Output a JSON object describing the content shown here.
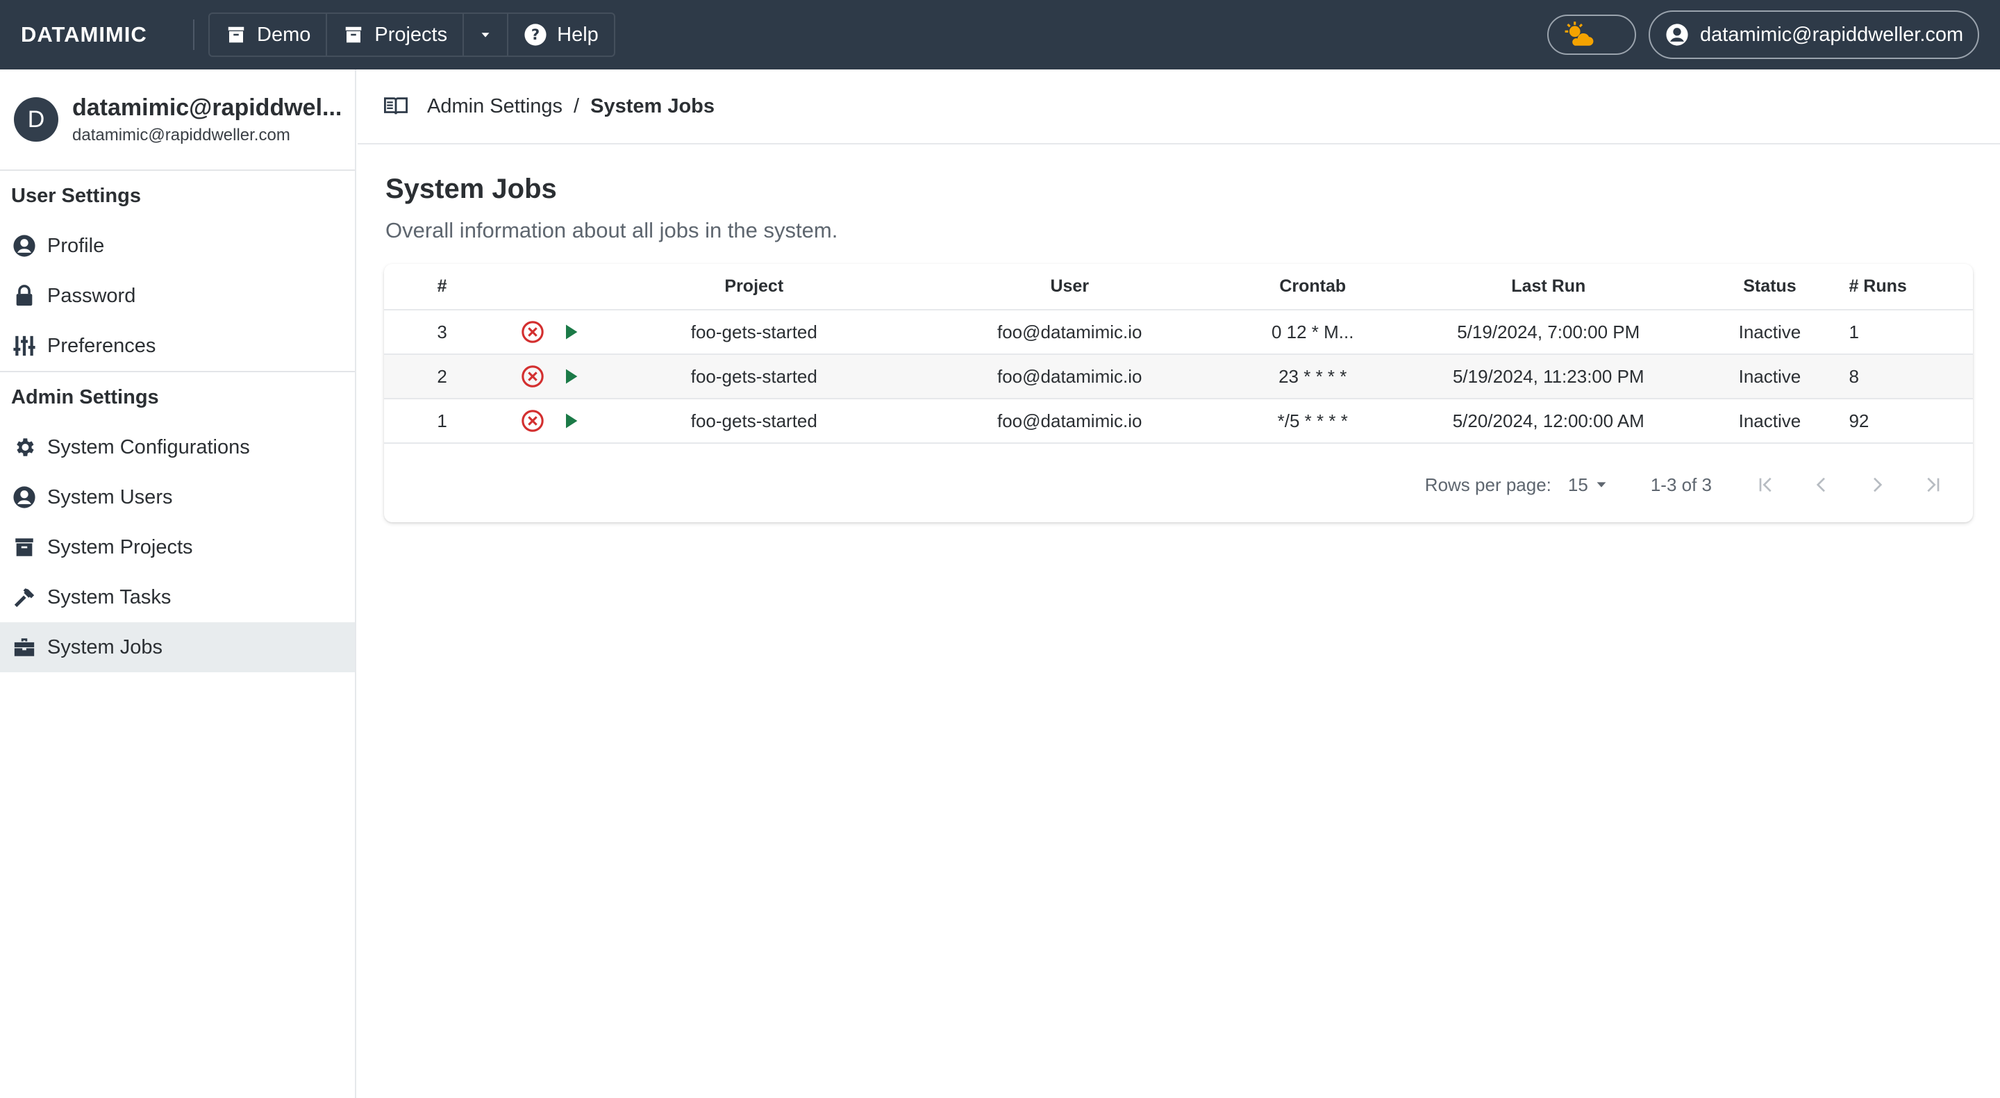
{
  "topbar": {
    "logo": "DATAMIMIC",
    "nav": [
      {
        "label": "Demo",
        "icon": "archive-icon"
      },
      {
        "label": "Projects",
        "icon": "archive-icon"
      },
      {
        "label": "Help",
        "icon": "help-circle-icon"
      }
    ],
    "theme_icon": "weather-sun-cloud-icon",
    "account_label": "datamimic@rapiddweller.com"
  },
  "sidebar": {
    "avatar_letter": "D",
    "user_name": "datamimic@rapiddwel...",
    "user_email": "datamimic@rapiddweller.com",
    "user_settings_title": "User Settings",
    "user_items": [
      {
        "label": "Profile",
        "icon": "account-circle-icon"
      },
      {
        "label": "Password",
        "icon": "lock-icon"
      },
      {
        "label": "Preferences",
        "icon": "tune-icon"
      }
    ],
    "admin_settings_title": "Admin Settings",
    "admin_items": [
      {
        "label": "System Configurations",
        "icon": "cog-icon"
      },
      {
        "label": "System Users",
        "icon": "account-circle-icon"
      },
      {
        "label": "System Projects",
        "icon": "archive-icon"
      },
      {
        "label": "System Tasks",
        "icon": "hammer-icon"
      },
      {
        "label": "System Jobs",
        "icon": "briefcase-icon",
        "active": true
      }
    ]
  },
  "breadcrumb": {
    "parent": "Admin Settings",
    "separator": "/",
    "current": "System Jobs"
  },
  "page": {
    "title": "System Jobs",
    "subtitle": "Overall information about all jobs in the system."
  },
  "table": {
    "headers": {
      "num": "#",
      "project": "Project",
      "user": "User",
      "crontab": "Crontab",
      "last_run": "Last Run",
      "status": "Status",
      "runs": "# Runs"
    },
    "rows": [
      {
        "num": "3",
        "project": "foo-gets-started",
        "user": "foo@datamimic.io",
        "crontab": "0 12 * M...",
        "last_run": "5/19/2024, 7:00:00 PM",
        "status": "Inactive",
        "runs": "1"
      },
      {
        "num": "2",
        "project": "foo-gets-started",
        "user": "foo@datamimic.io",
        "crontab": "23 * * * *",
        "last_run": "5/19/2024, 11:23:00 PM",
        "status": "Inactive",
        "runs": "8"
      },
      {
        "num": "1",
        "project": "foo-gets-started",
        "user": "foo@datamimic.io",
        "crontab": "*/5 * * * *",
        "last_run": "5/20/2024, 12:00:00 AM",
        "status": "Inactive",
        "runs": "92"
      }
    ],
    "pagination": {
      "rows_per_page_label": "Rows per page:",
      "rows_per_page_value": "15",
      "range": "1-3 of 3"
    }
  },
  "colors": {
    "topbar_bg": "#2e3a48",
    "delete_red": "#d32f2f",
    "run_green": "#1b7a47",
    "sun_orange": "#f5a300"
  }
}
